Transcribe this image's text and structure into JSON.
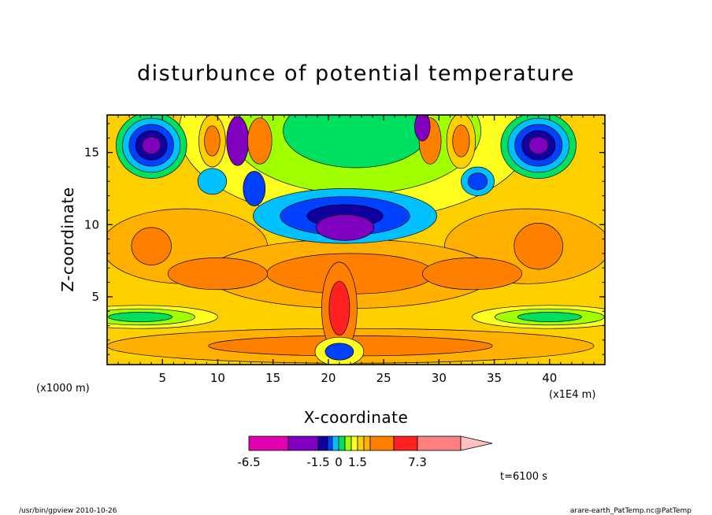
{
  "chart_data": {
    "type": "heatmap",
    "title": "disturbunce of potential temperature",
    "xlabel": "X-coordinate",
    "ylabel": "Z-coordinate",
    "x_unit_note_left": "(x1000 m)",
    "x_unit_note_right": "(x1E4 m)",
    "xlim": [
      0,
      45
    ],
    "ylim": [
      0.3,
      17.6
    ],
    "xticks": [
      "5",
      "10",
      "15",
      "20",
      "25",
      "30",
      "35",
      "40"
    ],
    "yticks": [
      "5",
      "10",
      "15"
    ],
    "colorbar": {
      "colors": [
        "#e000b0",
        "#8000c0",
        "#1000a0",
        "#0040ff",
        "#00c0ff",
        "#00e060",
        "#a0ff00",
        "#ffff20",
        "#ffd000",
        "#ffb000",
        "#ff8000",
        "#ff2020",
        "#ff8080",
        "#ffc0c0"
      ],
      "tick_labels": [
        "-6.5",
        "-1.5",
        "0",
        "1.5",
        "7.3"
      ],
      "min": -6.5,
      "max": 7.3
    },
    "features": [
      {
        "name": "upper negative core left",
        "x": 4,
        "z": 15.5,
        "level": "min"
      },
      {
        "name": "upper negative core right",
        "x": 39,
        "z": 15.5,
        "level": "min"
      },
      {
        "name": "central negative band",
        "x": 21,
        "z": 10,
        "level": "low"
      },
      {
        "name": "warm core left",
        "x": 4,
        "z": 8.5,
        "level": "positive"
      },
      {
        "name": "warm core right",
        "x": 39,
        "z": 8.5,
        "level": "positive"
      },
      {
        "name": "central warm plume",
        "x": 21,
        "z": 5.5,
        "level": "max"
      }
    ],
    "time_label": "t=6100 s"
  },
  "footer": {
    "left": "/usr/bin/gpview  2010-10-26",
    "right": "arare-earth_PatTemp.nc@PatTemp"
  }
}
